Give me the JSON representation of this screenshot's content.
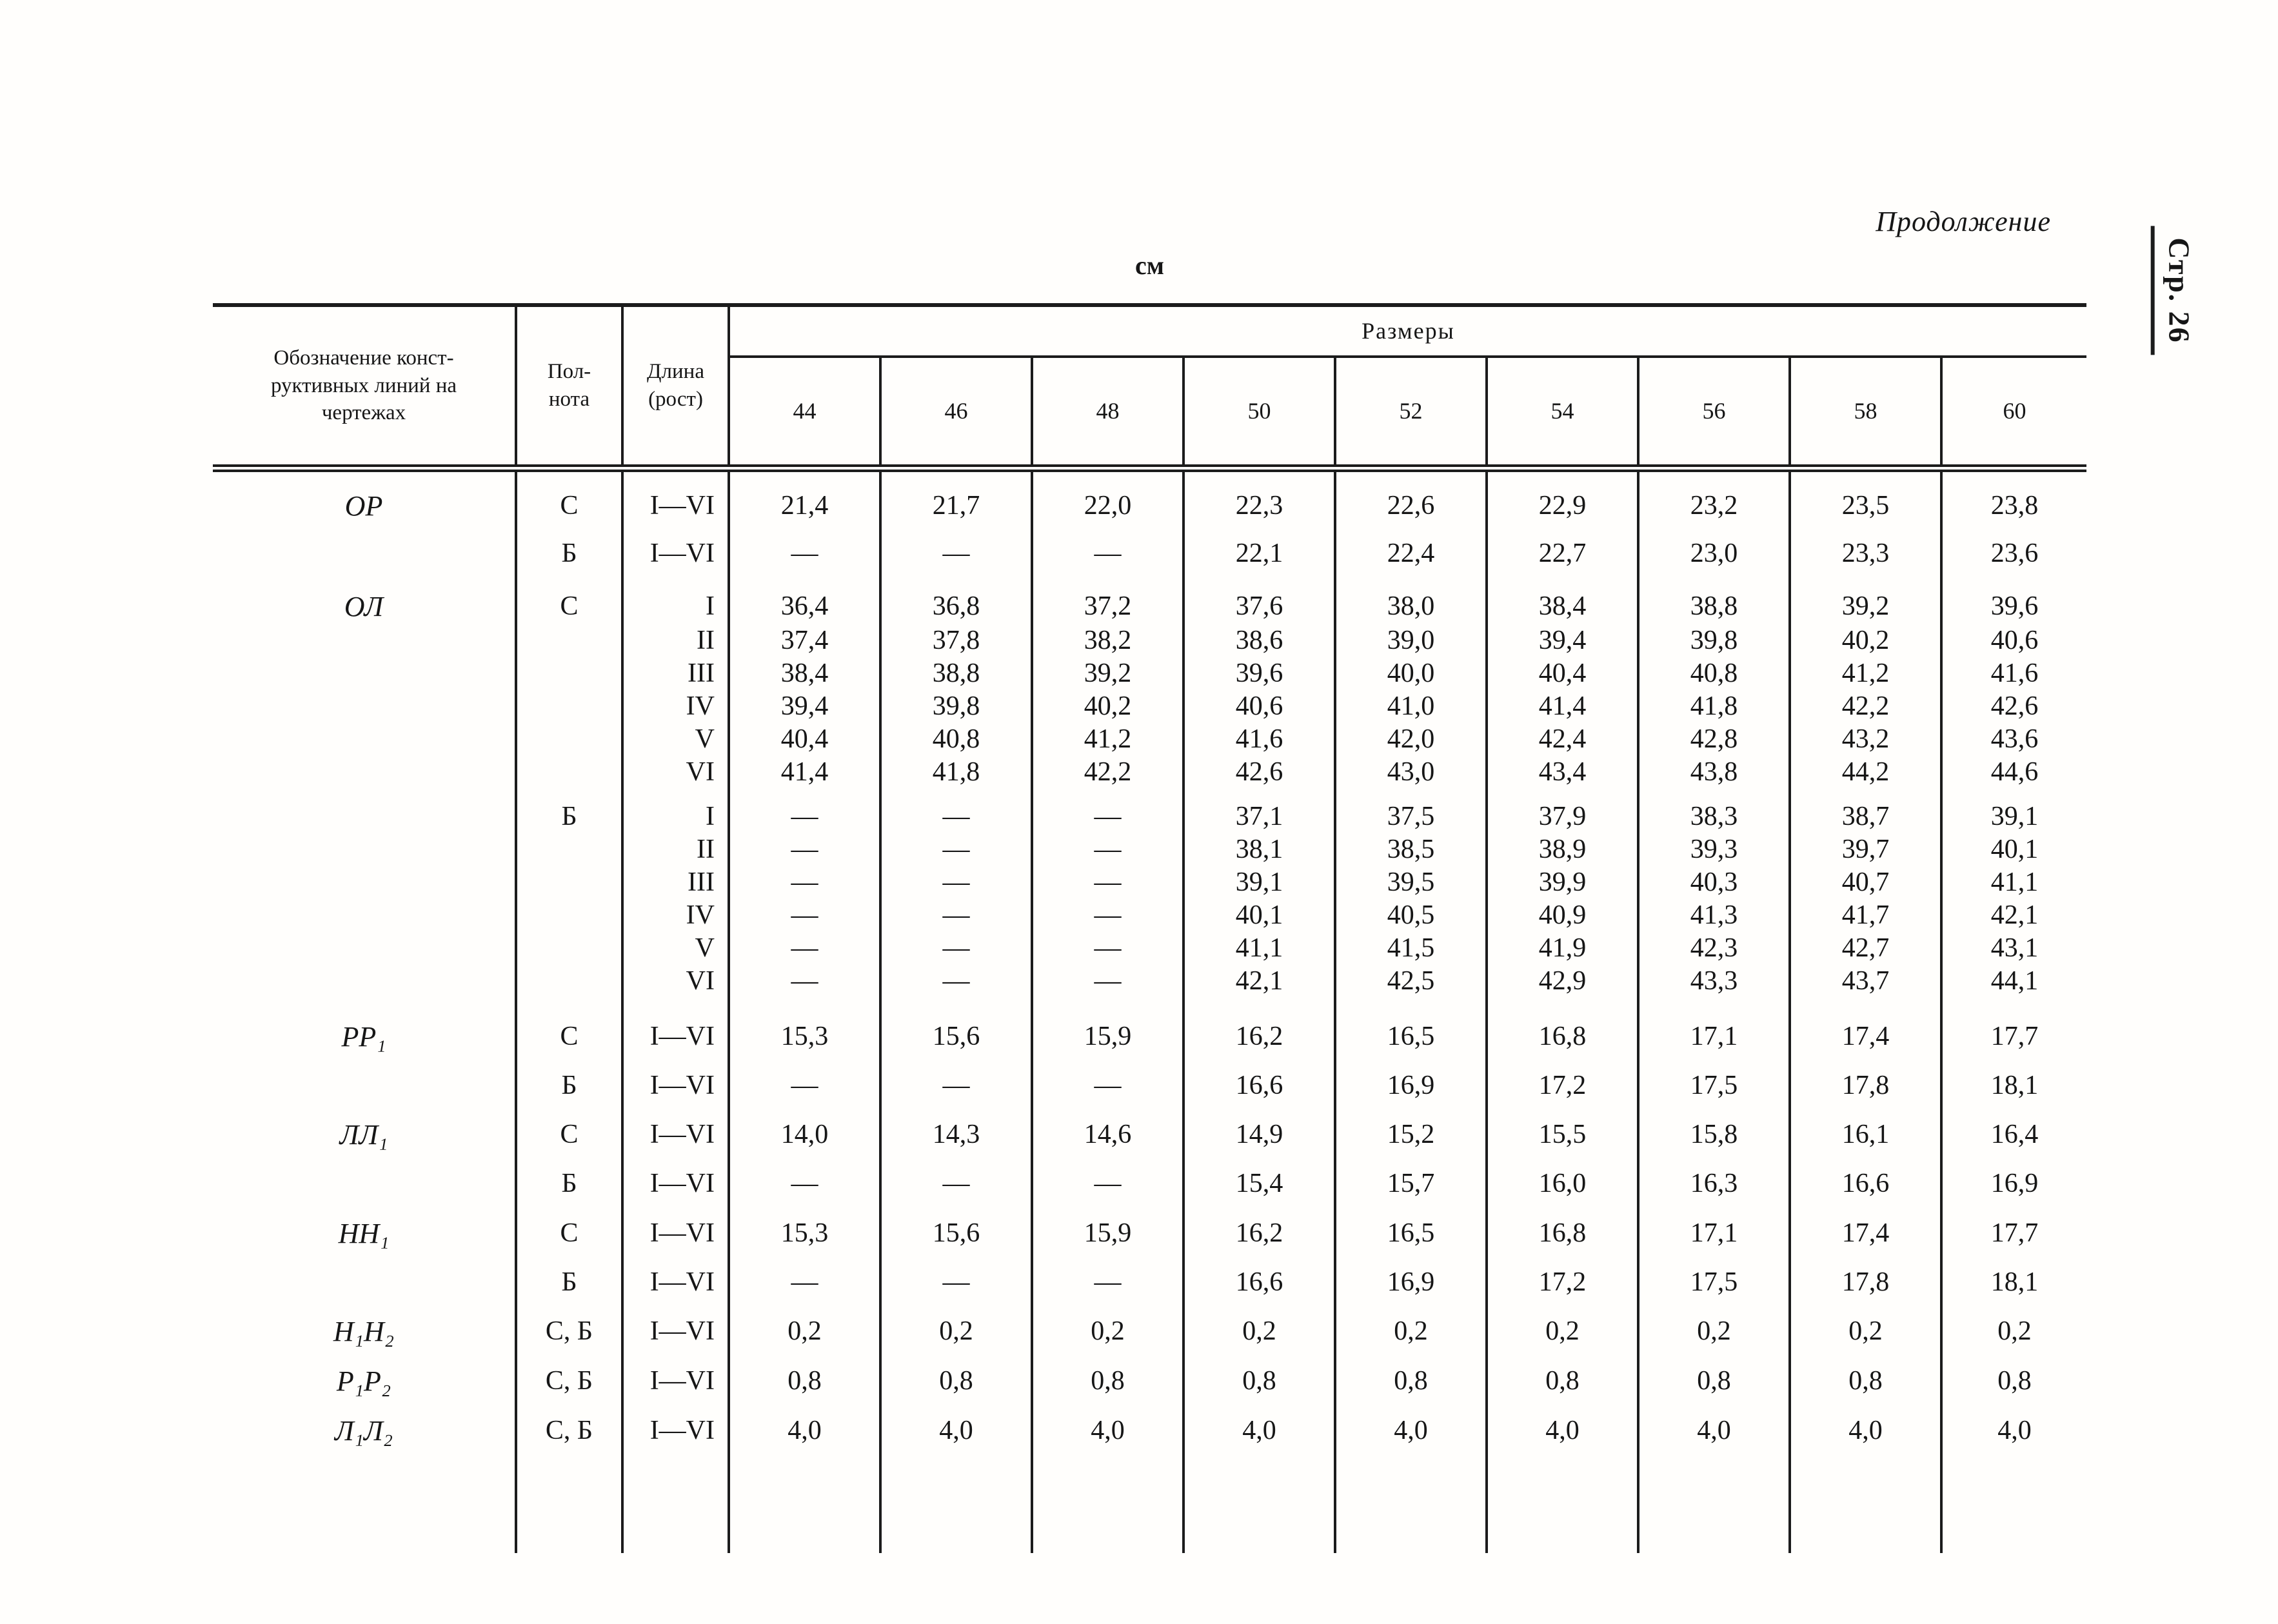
{
  "page": {
    "continuation_label": "Продолжение",
    "page_side_label": "Стр. 26",
    "unit_label": "см"
  },
  "table": {
    "header": {
      "designation_lines": "Обозначение конст-\nруктивных линий на\nчертежах",
      "fullness_lines": "Пол-\nнота",
      "length_lines": "Длина\n(рост)",
      "sizes_group_label": "Размеры",
      "size_columns": [
        "44",
        "46",
        "48",
        "50",
        "52",
        "54",
        "56",
        "58",
        "60"
      ]
    },
    "rows": [
      {
        "type": "first",
        "designation": "ОР",
        "fullness": "С",
        "length": "I—VI",
        "values": [
          "21,4",
          "21,7",
          "22,0",
          "22,3",
          "22,6",
          "22,9",
          "23,2",
          "23,5",
          "23,8"
        ]
      },
      {
        "type": "spaced",
        "designation": "",
        "fullness": "Б",
        "length": "I—VI",
        "values": [
          "—",
          "—",
          "—",
          "22,1",
          "22,4",
          "22,7",
          "23,0",
          "23,3",
          "23,6"
        ]
      },
      {
        "type": "tight-lead",
        "designation": "ОЛ",
        "fullness": "С",
        "length": "I",
        "values": [
          "36,4",
          "36,8",
          "37,2",
          "37,6",
          "38,0",
          "38,4",
          "38,8",
          "39,2",
          "39,6"
        ]
      },
      {
        "type": "tight",
        "designation": "",
        "fullness": "",
        "length": "II",
        "values": [
          "37,4",
          "37,8",
          "38,2",
          "38,6",
          "39,0",
          "39,4",
          "39,8",
          "40,2",
          "40,6"
        ]
      },
      {
        "type": "tight",
        "designation": "",
        "fullness": "",
        "length": "III",
        "values": [
          "38,4",
          "38,8",
          "39,2",
          "39,6",
          "40,0",
          "40,4",
          "40,8",
          "41,2",
          "41,6"
        ]
      },
      {
        "type": "tight",
        "designation": "",
        "fullness": "",
        "length": "IV",
        "values": [
          "39,4",
          "39,8",
          "40,2",
          "40,6",
          "41,0",
          "41,4",
          "41,8",
          "42,2",
          "42,6"
        ]
      },
      {
        "type": "tight",
        "designation": "",
        "fullness": "",
        "length": "V",
        "values": [
          "40,4",
          "40,8",
          "41,2",
          "41,6",
          "42,0",
          "42,4",
          "42,8",
          "43,2",
          "43,6"
        ]
      },
      {
        "type": "tight",
        "designation": "",
        "fullness": "",
        "length": "VI",
        "values": [
          "41,4",
          "41,8",
          "42,2",
          "42,6",
          "43,0",
          "43,4",
          "43,8",
          "44,2",
          "44,6"
        ]
      },
      {
        "type": "tight-lead",
        "designation": "",
        "fullness": "Б",
        "length": "I",
        "values": [
          "—",
          "—",
          "—",
          "37,1",
          "37,5",
          "37,9",
          "38,3",
          "38,7",
          "39,1"
        ]
      },
      {
        "type": "tight",
        "designation": "",
        "fullness": "",
        "length": "II",
        "values": [
          "—",
          "—",
          "—",
          "38,1",
          "38,5",
          "38,9",
          "39,3",
          "39,7",
          "40,1"
        ]
      },
      {
        "type": "tight",
        "designation": "",
        "fullness": "",
        "length": "III",
        "values": [
          "—",
          "—",
          "—",
          "39,1",
          "39,5",
          "39,9",
          "40,3",
          "40,7",
          "41,1"
        ]
      },
      {
        "type": "tight",
        "designation": "",
        "fullness": "",
        "length": "IV",
        "values": [
          "—",
          "—",
          "—",
          "40,1",
          "40,5",
          "40,9",
          "41,3",
          "41,7",
          "42,1"
        ]
      },
      {
        "type": "tight",
        "designation": "",
        "fullness": "",
        "length": "V",
        "values": [
          "—",
          "—",
          "—",
          "41,1",
          "41,5",
          "41,9",
          "42,3",
          "42,7",
          "43,1"
        ]
      },
      {
        "type": "tight",
        "designation": "",
        "fullness": "",
        "length": "VI",
        "values": [
          "—",
          "—",
          "—",
          "42,1",
          "42,5",
          "42,9",
          "43,3",
          "43,7",
          "44,1"
        ]
      },
      {
        "type": "spaced gap",
        "designation": "РР₁",
        "fullness": "С",
        "length": "I—VI",
        "values": [
          "15,3",
          "15,6",
          "15,9",
          "16,2",
          "16,5",
          "16,8",
          "17,1",
          "17,4",
          "17,7"
        ]
      },
      {
        "type": "spaced",
        "designation": "",
        "fullness": "Б",
        "length": "I—VI",
        "values": [
          "—",
          "—",
          "—",
          "16,6",
          "16,9",
          "17,2",
          "17,5",
          "17,8",
          "18,1"
        ]
      },
      {
        "type": "spaced",
        "designation": "ЛЛ₁",
        "fullness": "С",
        "length": "I—VI",
        "values": [
          "14,0",
          "14,3",
          "14,6",
          "14,9",
          "15,2",
          "15,5",
          "15,8",
          "16,1",
          "16,4"
        ]
      },
      {
        "type": "spaced",
        "designation": "",
        "fullness": "Б",
        "length": "I—VI",
        "values": [
          "—",
          "—",
          "—",
          "15,4",
          "15,7",
          "16,0",
          "16,3",
          "16,6",
          "16,9"
        ]
      },
      {
        "type": "spaced",
        "designation": "НН₁",
        "fullness": "С",
        "length": "I—VI",
        "values": [
          "15,3",
          "15,6",
          "15,9",
          "16,2",
          "16,5",
          "16,8",
          "17,1",
          "17,4",
          "17,7"
        ]
      },
      {
        "type": "spaced",
        "designation": "",
        "fullness": "Б",
        "length": "I—VI",
        "values": [
          "—",
          "—",
          "—",
          "16,6",
          "16,9",
          "17,2",
          "17,5",
          "17,8",
          "18,1"
        ]
      },
      {
        "type": "spaced",
        "designation": "Н₁Н₂",
        "fullness": "С, Б",
        "length": "I—VI",
        "values": [
          "0,2",
          "0,2",
          "0,2",
          "0,2",
          "0,2",
          "0,2",
          "0,2",
          "0,2",
          "0,2"
        ]
      },
      {
        "type": "spaced",
        "designation": "Р₁Р₂",
        "fullness": "С, Б",
        "length": "I—VI",
        "values": [
          "0,8",
          "0,8",
          "0,8",
          "0,8",
          "0,8",
          "0,8",
          "0,8",
          "0,8",
          "0,8"
        ]
      },
      {
        "type": "spaced",
        "designation": "Л₁Л₂",
        "fullness": "С, Б",
        "length": "I—VI",
        "values": [
          "4,0",
          "4,0",
          "4,0",
          "4,0",
          "4,0",
          "4,0",
          "4,0",
          "4,0",
          "4,0"
        ]
      }
    ]
  }
}
